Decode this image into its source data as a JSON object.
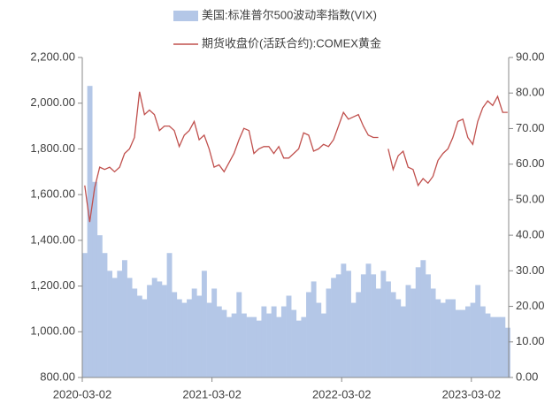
{
  "chart_data": {
    "type": "bar-line",
    "x": [
      "2020-03-02",
      "2020-03-16",
      "2020-03-30",
      "2020-04-13",
      "2020-04-27",
      "2020-05-11",
      "2020-05-25",
      "2020-06-08",
      "2020-06-22",
      "2020-07-06",
      "2020-07-20",
      "2020-08-03",
      "2020-08-17",
      "2020-08-31",
      "2020-09-14",
      "2020-09-28",
      "2020-10-12",
      "2020-10-26",
      "2020-11-09",
      "2020-11-23",
      "2020-12-07",
      "2020-12-21",
      "2021-01-04",
      "2021-01-18",
      "2021-02-01",
      "2021-02-15",
      "2021-03-01",
      "2021-03-15",
      "2021-03-29",
      "2021-04-12",
      "2021-04-26",
      "2021-05-10",
      "2021-05-24",
      "2021-06-07",
      "2021-06-21",
      "2021-07-05",
      "2021-07-19",
      "2021-08-02",
      "2021-08-16",
      "2021-08-30",
      "2021-09-13",
      "2021-09-27",
      "2021-10-11",
      "2021-10-25",
      "2021-11-08",
      "2021-11-22",
      "2021-12-06",
      "2021-12-20",
      "2022-01-03",
      "2022-01-17",
      "2022-01-31",
      "2022-02-14",
      "2022-02-28",
      "2022-03-14",
      "2022-03-28",
      "2022-04-11",
      "2022-04-25",
      "2022-05-09",
      "2022-05-23",
      "2022-06-06",
      "2022-06-20",
      "2022-07-04",
      "2022-07-18",
      "2022-08-01",
      "2022-08-15",
      "2022-08-29",
      "2022-09-12",
      "2022-09-26",
      "2022-10-10",
      "2022-10-24",
      "2022-11-07",
      "2022-11-21",
      "2022-12-05",
      "2022-12-19",
      "2023-01-02",
      "2023-01-16",
      "2023-01-30",
      "2023-02-13",
      "2023-02-27",
      "2023-03-13",
      "2023-03-27",
      "2023-04-10",
      "2023-04-24",
      "2023-05-08",
      "2023-05-22",
      "2023-06-05"
    ],
    "series": [
      {
        "name": "美国:标准普尔500波动率指数(VIX)",
        "color": "#b4c7e7",
        "kind": "bar",
        "axis": "y2",
        "values": [
          35,
          82,
          55,
          40,
          35,
          30,
          28,
          30,
          33,
          28,
          25,
          23,
          22,
          26,
          28,
          27,
          26,
          35,
          24,
          22,
          21,
          22,
          25,
          23,
          30,
          21,
          25,
          20,
          19,
          17,
          18,
          24,
          18,
          17,
          17,
          16,
          20,
          18,
          20,
          17,
          20,
          23,
          19,
          16,
          17,
          24,
          27,
          21,
          18,
          25,
          28,
          29,
          32,
          30,
          21,
          24,
          29,
          32,
          29,
          25,
          30,
          27,
          24,
          22,
          20,
          26,
          25,
          31,
          33,
          29,
          25,
          22,
          21,
          22,
          22,
          19,
          19,
          20,
          21,
          26,
          20,
          18,
          17,
          17,
          17,
          14
        ]
      },
      {
        "name": "期货收盘价(活跃合约):COMEX黄金",
        "color": "#c0504d",
        "kind": "line",
        "axis": "y",
        "values": [
          1640,
          1480,
          1630,
          1720,
          1710,
          1720,
          1700,
          1720,
          1780,
          1800,
          1850,
          2050,
          1950,
          1970,
          1950,
          1880,
          1900,
          1900,
          1880,
          1810,
          1860,
          1880,
          1920,
          1840,
          1860,
          1800,
          1720,
          1730,
          1700,
          1740,
          1780,
          1840,
          1890,
          1880,
          1780,
          1800,
          1810,
          1810,
          1780,
          1810,
          1760,
          1760,
          1780,
          1800,
          1870,
          1860,
          1790,
          1800,
          1820,
          1810,
          1840,
          1900,
          1960,
          1930,
          1940,
          1950,
          1900,
          1860,
          1850,
          1850,
          null,
          1800,
          1710,
          1770,
          1790,
          1720,
          1710,
          1640,
          1670,
          1650,
          1680,
          1750,
          1780,
          1800,
          1850,
          1920,
          1930,
          1850,
          1820,
          1920,
          1980,
          2010,
          1990,
          2030,
          1960,
          1960
        ]
      }
    ],
    "xlim": [
      "2020-03-02",
      "2023-06-15"
    ],
    "xticks": [
      "2020-03-02",
      "2021-03-02",
      "2022-03-02",
      "2023-03-02"
    ],
    "ylim": [
      800,
      2200
    ],
    "yticks": [
      {
        "value": 800,
        "label": "800.00"
      },
      {
        "value": 1000,
        "label": "1,000.00"
      },
      {
        "value": 1200,
        "label": "1,200.00"
      },
      {
        "value": 1400,
        "label": "1,400.00"
      },
      {
        "value": 1600,
        "label": "1,600.00"
      },
      {
        "value": 1800,
        "label": "1,800.00"
      },
      {
        "value": 2000,
        "label": "2,000.00"
      },
      {
        "value": 2200,
        "label": "2,200.00"
      }
    ],
    "y2lim": [
      0,
      90
    ],
    "y2ticks": [
      {
        "value": 0,
        "label": "0.00"
      },
      {
        "value": 10,
        "label": "10.00"
      },
      {
        "value": 20,
        "label": "20.00"
      },
      {
        "value": 30,
        "label": "30.00"
      },
      {
        "value": 40,
        "label": "40.00"
      },
      {
        "value": 50,
        "label": "50.00"
      },
      {
        "value": 60,
        "label": "60.00"
      },
      {
        "value": 70,
        "label": "70.00"
      },
      {
        "value": 80,
        "label": "80.00"
      },
      {
        "value": 90,
        "label": "90.00"
      }
    ]
  }
}
